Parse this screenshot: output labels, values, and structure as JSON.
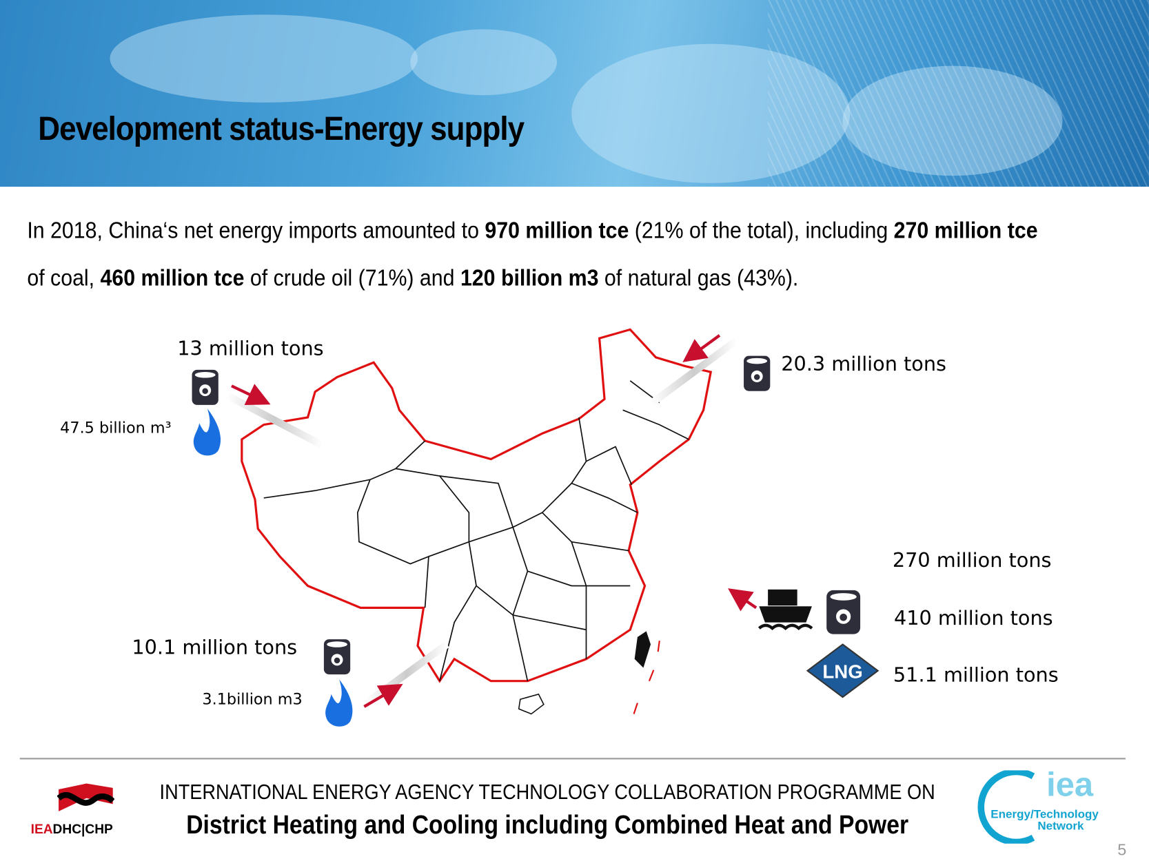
{
  "header": {
    "title": "Development status-Energy supply"
  },
  "intro": {
    "line1": [
      {
        "text": "In 2018, China‘s net energy imports amounted to ",
        "bold": false
      },
      {
        "text": "970 million tce",
        "bold": true
      },
      {
        "text": " (21% of the total), including ",
        "bold": false
      },
      {
        "text": "270 million tce",
        "bold": true
      }
    ],
    "line2": [
      {
        "text": "of coal, ",
        "bold": false
      },
      {
        "text": "460 million tce",
        "bold": true
      },
      {
        "text": " of crude oil (71%) and ",
        "bold": false
      },
      {
        "text": "120 billion m3",
        "bold": true
      },
      {
        "text": " of natural gas (43%).",
        "bold": false
      }
    ]
  },
  "map": {
    "northwest": {
      "oil": "13 million tons",
      "gas": "47.5 billion m³"
    },
    "northeast": {
      "oil": "20.3 million tons"
    },
    "southwest": {
      "oil": "10.1 million tons",
      "gas": "3.1billion m3"
    },
    "sea": {
      "coal": "270 million tons",
      "oil": "410 million tons",
      "lng": "51.1 million tons",
      "lng_badge": "LNG"
    },
    "colors": {
      "border": "#e01010",
      "arrow": "#c8102e",
      "barrel": "#2e2e3a",
      "flame": "#1a6fe0",
      "lng": "#1c5a9a"
    }
  },
  "footer": {
    "line1": "INTERNATIONAL ENERGY AGENCY TECHNOLOGY COLLABORATION PROGRAMME ON",
    "line2": "District Heating and Cooling including Combined Heat and Power",
    "left_logo": {
      "a": "IEA",
      "b": "DHC|CHP"
    },
    "right_logo": {
      "a": "iea",
      "b": "Energy/Technology",
      "c": "Network"
    },
    "page_number": "5"
  }
}
